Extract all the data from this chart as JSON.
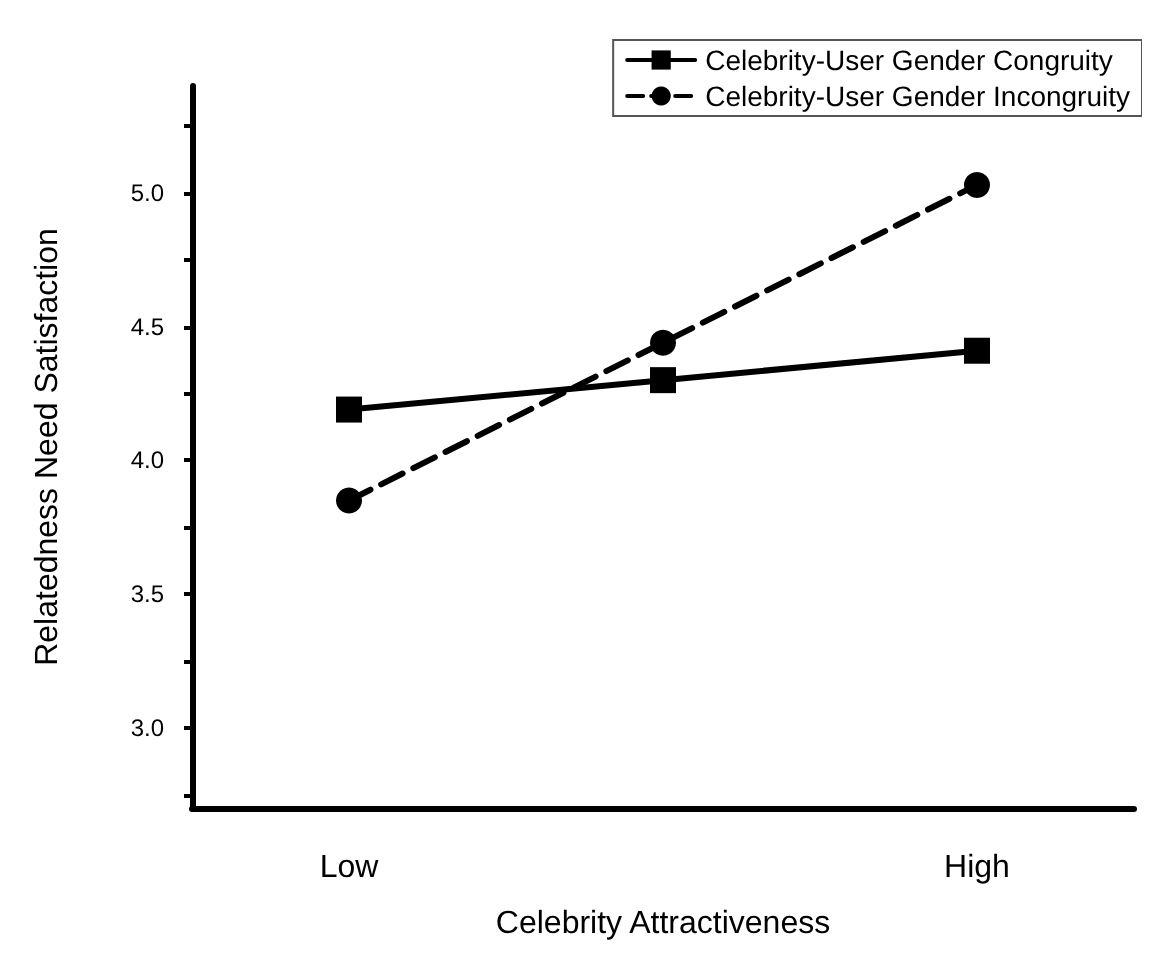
{
  "chart_data": {
    "type": "line",
    "xlabel": "Celebrity Attractiveness",
    "ylabel": "Relatedness Need Satisfaction",
    "categories": [
      "Low",
      null,
      "High"
    ],
    "series": [
      {
        "name": "Celebrity-User Gender Congruity",
        "color": "#000000",
        "values": [
          4.19,
          4.3,
          4.41
        ],
        "marker": "square",
        "line_style": "solid"
      },
      {
        "name": "Celebrity-User Gender Incongruity",
        "color": "#000000",
        "values": [
          3.85,
          4.44,
          5.03
        ],
        "marker": "circle",
        "line_style": "dashed"
      }
    ],
    "ylim": [
      2.7,
      5.4
    ],
    "yticks": [
      {
        "value": 2.75,
        "label": null
      },
      {
        "value": 3,
        "label": "3.0"
      },
      {
        "value": 3.25,
        "label": null
      },
      {
        "value": 3.5,
        "label": "3.5"
      },
      {
        "value": 3.75,
        "label": null
      },
      {
        "value": 4,
        "label": "4.0"
      },
      {
        "value": 4.25,
        "label": null
      },
      {
        "value": 4.5,
        "label": "4.5"
      },
      {
        "value": 4.75,
        "label": null
      },
      {
        "value": 5,
        "label": "5.0"
      },
      {
        "value": 5.25,
        "label": null
      }
    ],
    "grid": false,
    "legend": "top right"
  }
}
